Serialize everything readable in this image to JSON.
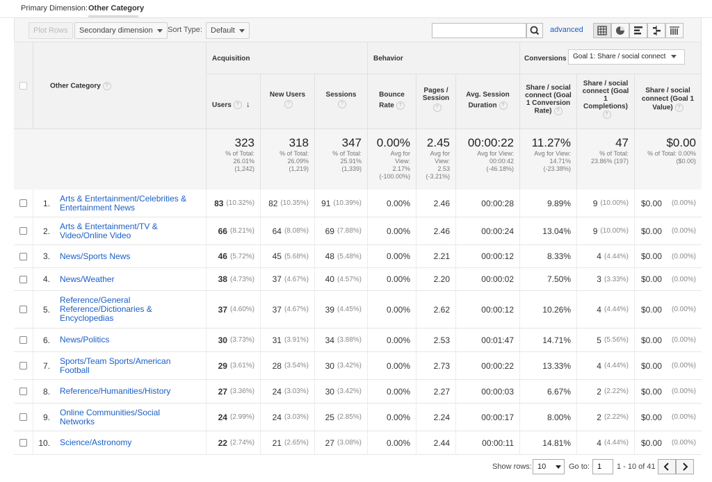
{
  "primary_dimension": {
    "label": "Primary Dimension:",
    "value": "Other Category"
  },
  "toolbar": {
    "plot_rows": "Plot Rows",
    "secondary_dimension": "Secondary dimension",
    "sort_type_label": "Sort Type:",
    "sort_type_value": "Default",
    "search_value": "",
    "advanced": "advanced"
  },
  "headers": {
    "other_category": "Other Category",
    "acquisition": "Acquisition",
    "behavior": "Behavior",
    "conversions": "Conversions",
    "goal_select": "Goal 1: Share / social connect",
    "users": "Users",
    "new_users": "New Users",
    "sessions": "Sessions",
    "bounce_rate_1": "Bounce",
    "bounce_rate_2": "Rate",
    "pages_session_1": "Pages /",
    "pages_session_2": "Session",
    "avg_session_1": "Avg. Session",
    "avg_session_2": "Duration",
    "conv_rate_1": "Share / social",
    "conv_rate_2": "connect (Goal",
    "conv_rate_3": "1 Conversion",
    "conv_rate_4": "Rate)",
    "completions_1": "Share / social",
    "completions_2": "connect (Goal",
    "completions_3": "1",
    "completions_4": "Completions)",
    "value_1": "Share / social",
    "value_2": "connect (Goal 1",
    "value_3": "Value)"
  },
  "totals": {
    "users": {
      "big": "323",
      "l1": "% of Total:",
      "l2": "26.01%",
      "l3": "(1,242)"
    },
    "new_users": {
      "big": "318",
      "l1": "% of Total:",
      "l2": "26.09%",
      "l3": "(1,219)"
    },
    "sessions": {
      "big": "347",
      "l1": "% of Total:",
      "l2": "25.91%",
      "l3": "(1,339)"
    },
    "bounce": {
      "big": "0.00%",
      "l1": "Avg for",
      "l2": "View:",
      "l3": "2.17%",
      "l4": "(-100.00%)"
    },
    "pages": {
      "big": "2.45",
      "l1": "Avg for",
      "l2": "View:",
      "l3": "2.53",
      "l4": "(-3.21%)"
    },
    "duration": {
      "big": "00:00:22",
      "l1": "Avg for View:",
      "l2": "00:00:42",
      "l3": "(-46.18%)"
    },
    "conv_rate": {
      "big": "11.27%",
      "l1": "Avg for View:",
      "l2": "14.71%",
      "l3": "(-23.38%)"
    },
    "completions": {
      "big": "47",
      "l1": "% of Total:",
      "l2": "23.86% (197)"
    },
    "value": {
      "big": "$0.00",
      "l1": "% of Total: 0.00%",
      "l2": "($0.00)"
    }
  },
  "rows": [
    {
      "idx": "1.",
      "cat1": "Arts & Entertainment/Celebrities &",
      "cat2": "Entertainment News",
      "cat3": "",
      "users": "83",
      "users_pct": "(10.32%)",
      "new_users": "82",
      "new_users_pct": "(10.35%)",
      "sessions": "91",
      "sessions_pct": "(10.39%)",
      "bounce": "0.00%",
      "pages": "2.46",
      "duration": "00:00:28",
      "conv_rate": "9.89%",
      "completions": "9",
      "completions_pct": "(10.00%)",
      "value": "$0.00",
      "value_pct": "(0.00%)"
    },
    {
      "idx": "2.",
      "cat1": "Arts & Entertainment/TV &",
      "cat2": "Video/Online Video",
      "cat3": "",
      "users": "66",
      "users_pct": "(8.21%)",
      "new_users": "64",
      "new_users_pct": "(8.08%)",
      "sessions": "69",
      "sessions_pct": "(7.88%)",
      "bounce": "0.00%",
      "pages": "2.46",
      "duration": "00:00:24",
      "conv_rate": "13.04%",
      "completions": "9",
      "completions_pct": "(10.00%)",
      "value": "$0.00",
      "value_pct": "(0.00%)"
    },
    {
      "idx": "3.",
      "cat1": "News/Sports News",
      "cat2": "",
      "cat3": "",
      "users": "46",
      "users_pct": "(5.72%)",
      "new_users": "45",
      "new_users_pct": "(5.68%)",
      "sessions": "48",
      "sessions_pct": "(5.48%)",
      "bounce": "0.00%",
      "pages": "2.21",
      "duration": "00:00:12",
      "conv_rate": "8.33%",
      "completions": "4",
      "completions_pct": "(4.44%)",
      "value": "$0.00",
      "value_pct": "(0.00%)"
    },
    {
      "idx": "4.",
      "cat1": "News/Weather",
      "cat2": "",
      "cat3": "",
      "users": "38",
      "users_pct": "(4.73%)",
      "new_users": "37",
      "new_users_pct": "(4.67%)",
      "sessions": "40",
      "sessions_pct": "(4.57%)",
      "bounce": "0.00%",
      "pages": "2.20",
      "duration": "00:00:02",
      "conv_rate": "7.50%",
      "completions": "3",
      "completions_pct": "(3.33%)",
      "value": "$0.00",
      "value_pct": "(0.00%)"
    },
    {
      "idx": "5.",
      "cat1": "Reference/General",
      "cat2": "Reference/Dictionaries &",
      "cat3": "Encyclopedias",
      "users": "37",
      "users_pct": "(4.60%)",
      "new_users": "37",
      "new_users_pct": "(4.67%)",
      "sessions": "39",
      "sessions_pct": "(4.45%)",
      "bounce": "0.00%",
      "pages": "2.62",
      "duration": "00:00:12",
      "conv_rate": "10.26%",
      "completions": "4",
      "completions_pct": "(4.44%)",
      "value": "$0.00",
      "value_pct": "(0.00%)"
    },
    {
      "idx": "6.",
      "cat1": "News/Politics",
      "cat2": "",
      "cat3": "",
      "users": "30",
      "users_pct": "(3.73%)",
      "new_users": "31",
      "new_users_pct": "(3.91%)",
      "sessions": "34",
      "sessions_pct": "(3.88%)",
      "bounce": "0.00%",
      "pages": "2.53",
      "duration": "00:01:47",
      "conv_rate": "14.71%",
      "completions": "5",
      "completions_pct": "(5.56%)",
      "value": "$0.00",
      "value_pct": "(0.00%)"
    },
    {
      "idx": "7.",
      "cat1": "Sports/Team Sports/American",
      "cat2": "Football",
      "cat3": "",
      "users": "29",
      "users_pct": "(3.61%)",
      "new_users": "28",
      "new_users_pct": "(3.54%)",
      "sessions": "30",
      "sessions_pct": "(3.42%)",
      "bounce": "0.00%",
      "pages": "2.73",
      "duration": "00:00:22",
      "conv_rate": "13.33%",
      "completions": "4",
      "completions_pct": "(4.44%)",
      "value": "$0.00",
      "value_pct": "(0.00%)"
    },
    {
      "idx": "8.",
      "cat1": "Reference/Humanities/History",
      "cat2": "",
      "cat3": "",
      "users": "27",
      "users_pct": "(3.36%)",
      "new_users": "24",
      "new_users_pct": "(3.03%)",
      "sessions": "30",
      "sessions_pct": "(3.42%)",
      "bounce": "0.00%",
      "pages": "2.27",
      "duration": "00:00:03",
      "conv_rate": "6.67%",
      "completions": "2",
      "completions_pct": "(2.22%)",
      "value": "$0.00",
      "value_pct": "(0.00%)"
    },
    {
      "idx": "9.",
      "cat1": "Online Communities/Social",
      "cat2": "Networks",
      "cat3": "",
      "users": "24",
      "users_pct": "(2.99%)",
      "new_users": "24",
      "new_users_pct": "(3.03%)",
      "sessions": "25",
      "sessions_pct": "(2.85%)",
      "bounce": "0.00%",
      "pages": "2.24",
      "duration": "00:00:17",
      "conv_rate": "8.00%",
      "completions": "2",
      "completions_pct": "(2.22%)",
      "value": "$0.00",
      "value_pct": "(0.00%)"
    },
    {
      "idx": "10.",
      "cat1": "Science/Astronomy",
      "cat2": "",
      "cat3": "",
      "users": "22",
      "users_pct": "(2.74%)",
      "new_users": "21",
      "new_users_pct": "(2.65%)",
      "sessions": "27",
      "sessions_pct": "(3.08%)",
      "bounce": "0.00%",
      "pages": "2.44",
      "duration": "00:00:11",
      "conv_rate": "14.81%",
      "completions": "4",
      "completions_pct": "(4.44%)",
      "value": "$0.00",
      "value_pct": "(0.00%)"
    }
  ],
  "footer": {
    "show_rows_label": "Show rows:",
    "show_rows_value": "10",
    "goto_label": "Go to:",
    "goto_value": "1",
    "range": "1 - 10 of 41"
  }
}
